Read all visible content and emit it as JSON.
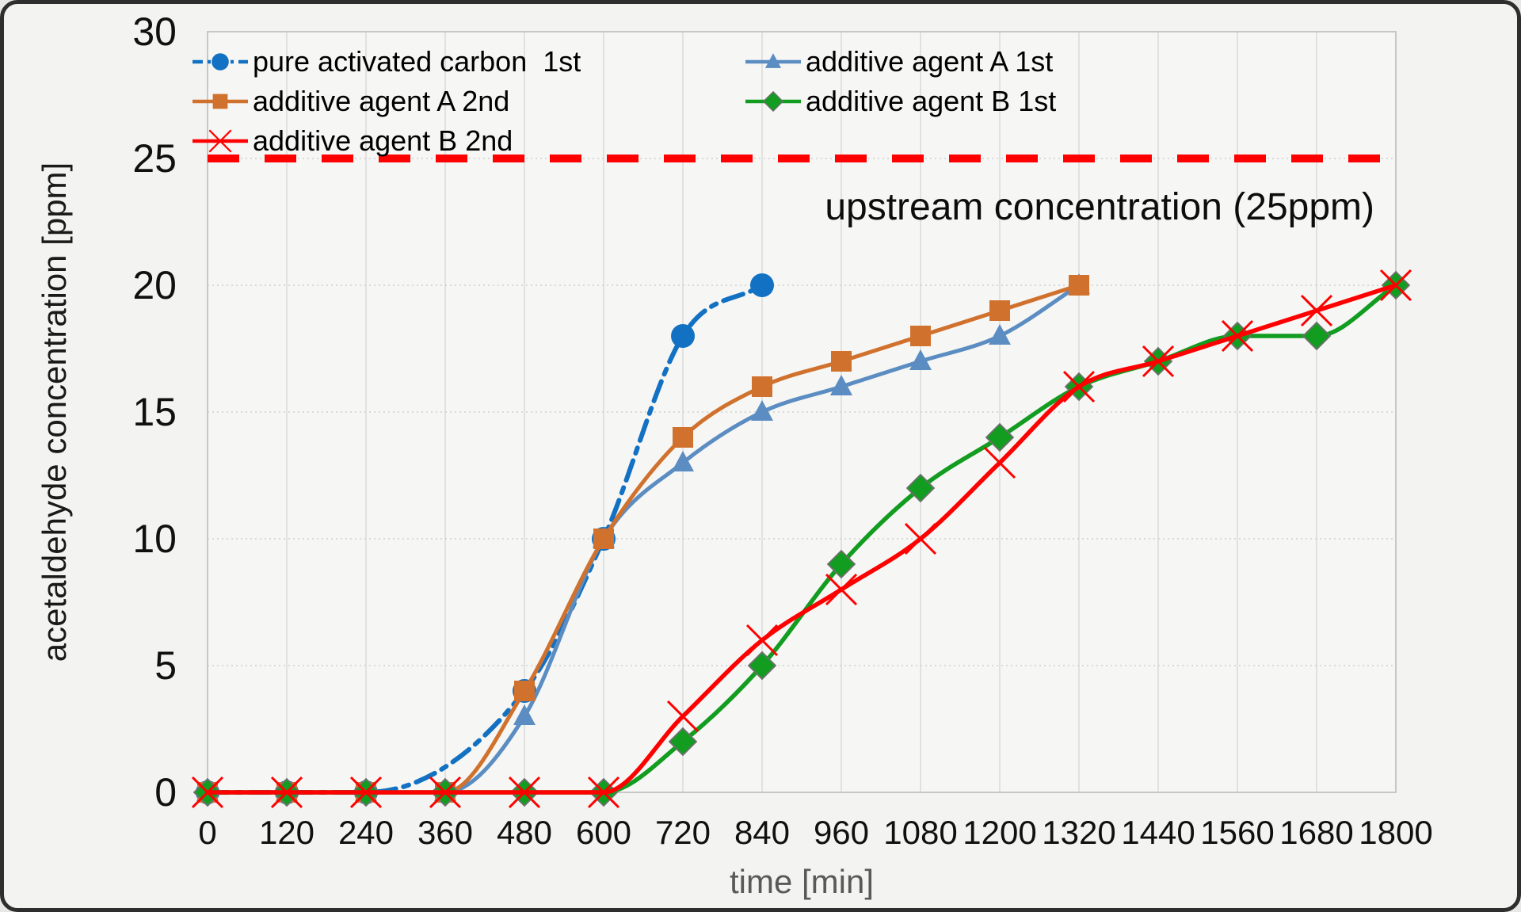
{
  "chart_data": {
    "type": "line",
    "xlabel": "time [min]",
    "ylabel": "acetaldehyde concentration [ppm]",
    "xlim": [
      0,
      1800
    ],
    "ylim": [
      0,
      30
    ],
    "xticks": [
      0,
      120,
      240,
      360,
      480,
      600,
      720,
      840,
      960,
      1080,
      1200,
      1320,
      1440,
      1560,
      1680,
      1800
    ],
    "yticks": [
      0,
      5,
      10,
      15,
      20,
      25,
      30
    ],
    "grid": "on",
    "legend_position": "top-left-inside-two-columns",
    "annotation": {
      "text": "upstream concentration (25ppm)",
      "value": 25,
      "color": "#ff0000"
    },
    "series": [
      {
        "name": "pure activated carbon  1st",
        "color": "#1271c2",
        "marker": "circle",
        "line_style": "dash-dot",
        "x": [
          0,
          120,
          240,
          480,
          600,
          720,
          840
        ],
        "y": [
          0,
          0,
          0,
          4,
          10,
          18,
          20
        ]
      },
      {
        "name": "additive agent A 1st",
        "color": "#5b8dc2",
        "marker": "triangle",
        "line_style": "solid",
        "x": [
          0,
          120,
          240,
          360,
          480,
          600,
          720,
          840,
          960,
          1080,
          1200,
          1320
        ],
        "y": [
          0,
          0,
          0,
          0,
          3,
          10,
          13,
          15,
          16,
          17,
          18,
          20
        ]
      },
      {
        "name": "additive agent A 2nd",
        "color": "#d0712d",
        "marker": "square",
        "line_style": "solid",
        "x": [
          0,
          120,
          240,
          360,
          480,
          600,
          720,
          840,
          960,
          1080,
          1200,
          1320
        ],
        "y": [
          0,
          0,
          0,
          0,
          4,
          10,
          14,
          16,
          17,
          18,
          19,
          20
        ]
      },
      {
        "name": "additive agent B 1st",
        "color": "#129c20",
        "marker": "diamond",
        "line_style": "solid",
        "x": [
          0,
          120,
          240,
          360,
          480,
          600,
          720,
          840,
          960,
          1080,
          1200,
          1320,
          1440,
          1560,
          1680,
          1800
        ],
        "y": [
          0,
          0,
          0,
          0,
          0,
          0,
          2,
          5,
          9,
          12,
          14,
          16,
          17,
          18,
          18,
          20
        ]
      },
      {
        "name": "additive agent B 2nd",
        "color": "#ff0000",
        "marker": "x",
        "line_style": "solid",
        "x": [
          0,
          120,
          240,
          360,
          480,
          600,
          720,
          840,
          960,
          1080,
          1200,
          1320,
          1440,
          1560,
          1680,
          1800
        ],
        "y": [
          0,
          0,
          0,
          0,
          0,
          0,
          3,
          6,
          8,
          10,
          13,
          16,
          17,
          18,
          19,
          20
        ]
      }
    ],
    "legend_columns": [
      [
        0,
        2,
        4
      ],
      [
        1,
        3
      ]
    ],
    "colors": {
      "plot_bg": "#f6f6f4",
      "outer_bg": "#f3f3f1",
      "grid_vertical": "#dcdcda",
      "grid_horizontal": "#cfcfcd",
      "plot_border": "#c7c7c5",
      "tick_label": "#101010",
      "x_title": "#595959",
      "y_title": "#1a1a1a",
      "annotation_text": "#0d0d0d"
    }
  }
}
